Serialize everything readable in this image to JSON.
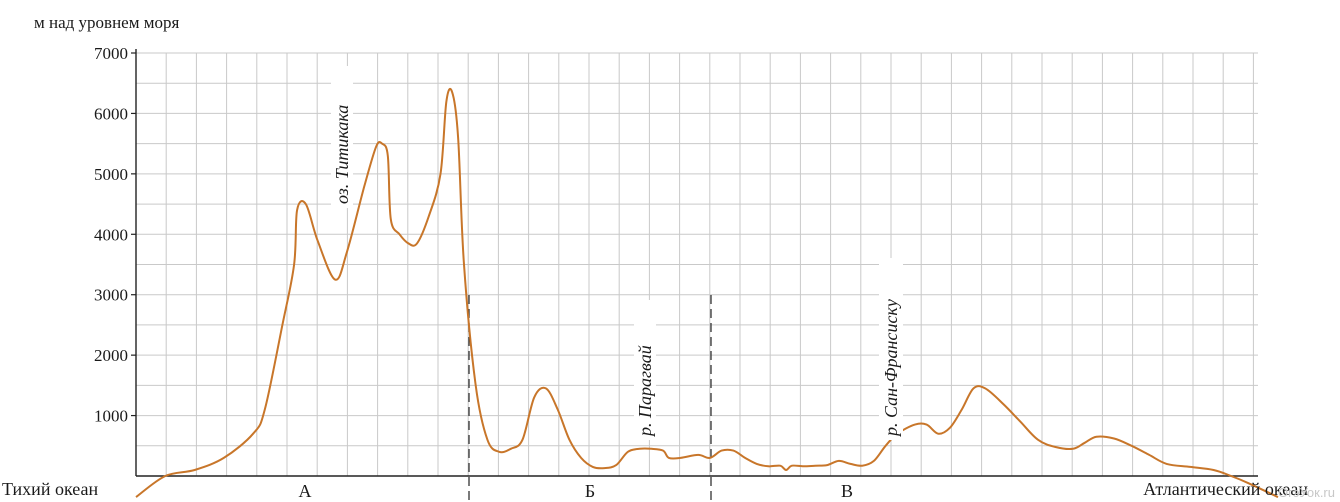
{
  "chart_data": {
    "type": "area",
    "ylabel": "м над уровнем моря",
    "ylim": [
      0,
      7000
    ],
    "yticks": [
      1000,
      2000,
      3000,
      4000,
      5000,
      6000,
      7000
    ],
    "grid": true,
    "xlabel": "",
    "x_left_label": "Тихий океан",
    "x_right_label": "Атлантический океан",
    "regions": [
      "А",
      "Б",
      "В"
    ],
    "annotations": [
      "оз. Титикака",
      "р. Парагвай",
      "р. Сан-Франсиску"
    ],
    "series": [
      {
        "values": [
          [
            0,
            -350
          ],
          [
            5,
            0
          ],
          [
            10,
            100
          ],
          [
            15,
            300
          ],
          [
            20,
            700
          ],
          [
            22,
            1100
          ],
          [
            25,
            2500
          ],
          [
            27,
            3500
          ],
          [
            27.5,
            4400
          ],
          [
            29,
            4500
          ],
          [
            31,
            3900
          ],
          [
            34,
            3250
          ],
          [
            36,
            3700
          ],
          [
            39,
            4800
          ],
          [
            41,
            5450
          ],
          [
            42,
            5500
          ],
          [
            43,
            5300
          ],
          [
            43.5,
            4250
          ],
          [
            45,
            4000
          ],
          [
            46.5,
            3850
          ],
          [
            48,
            3850
          ],
          [
            50,
            4300
          ],
          [
            52,
            5000
          ],
          [
            53,
            6200
          ],
          [
            54,
            6350
          ],
          [
            55,
            5600
          ],
          [
            56,
            3500
          ],
          [
            58,
            1500
          ],
          [
            60,
            600
          ],
          [
            62,
            400
          ],
          [
            64,
            450
          ],
          [
            66,
            600
          ],
          [
            68,
            1300
          ],
          [
            70,
            1450
          ],
          [
            72,
            1100
          ],
          [
            74,
            600
          ],
          [
            76,
            300
          ],
          [
            78,
            150
          ],
          [
            80,
            130
          ],
          [
            82,
            180
          ],
          [
            84,
            400
          ],
          [
            86,
            450
          ],
          [
            88,
            450
          ],
          [
            90,
            420
          ],
          [
            91,
            300
          ],
          [
            93,
            300
          ],
          [
            96,
            350
          ],
          [
            98,
            300
          ],
          [
            100,
            420
          ],
          [
            102,
            420
          ],
          [
            104,
            300
          ],
          [
            106,
            200
          ],
          [
            108,
            160
          ],
          [
            110,
            170
          ],
          [
            111,
            100
          ],
          [
            112,
            170
          ],
          [
            114,
            160
          ],
          [
            116,
            170
          ],
          [
            118,
            180
          ],
          [
            120,
            250
          ],
          [
            122,
            200
          ],
          [
            124,
            170
          ],
          [
            126,
            250
          ],
          [
            128,
            500
          ],
          [
            130,
            700
          ],
          [
            133,
            850
          ],
          [
            135,
            850
          ],
          [
            137,
            700
          ],
          [
            139,
            800
          ],
          [
            141,
            1100
          ],
          [
            143,
            1450
          ],
          [
            145,
            1450
          ],
          [
            148,
            1200
          ],
          [
            151,
            900
          ],
          [
            154,
            600
          ],
          [
            157,
            480
          ],
          [
            160,
            450
          ],
          [
            162,
            550
          ],
          [
            164,
            650
          ],
          [
            167,
            620
          ],
          [
            170,
            500
          ],
          [
            173,
            350
          ],
          [
            176,
            200
          ],
          [
            180,
            150
          ],
          [
            184,
            100
          ],
          [
            187,
            0
          ],
          [
            190,
            -120
          ],
          [
            195,
            -350
          ]
        ]
      }
    ]
  },
  "watermark": "ОгэУок.ru"
}
